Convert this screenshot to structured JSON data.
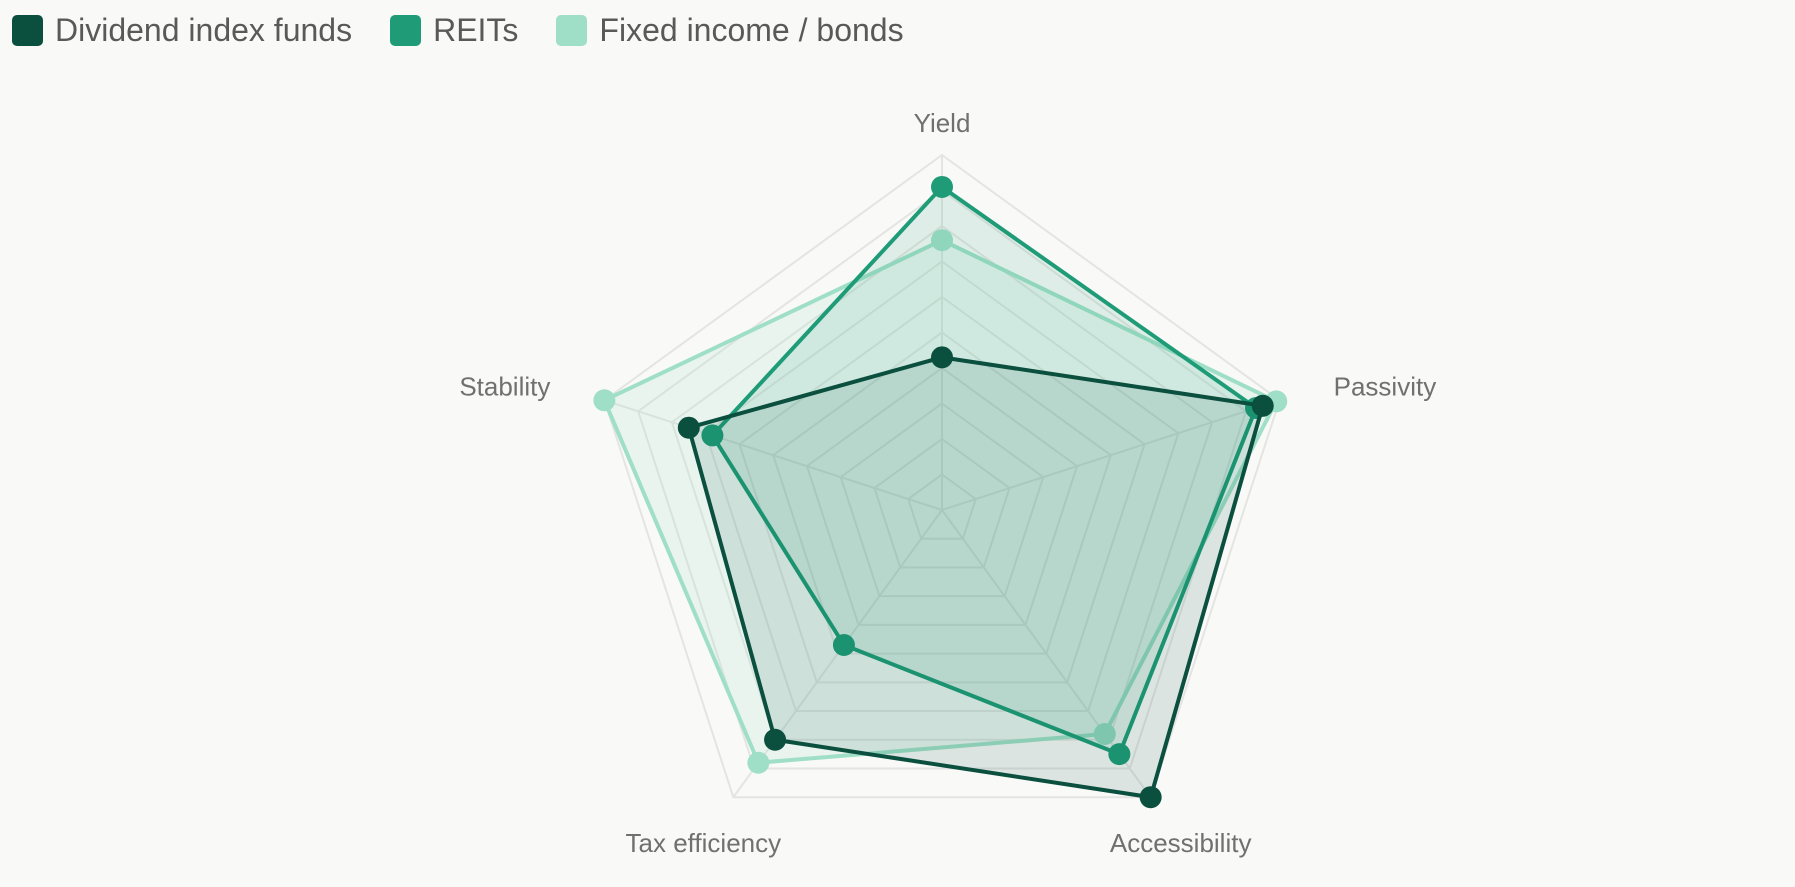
{
  "chart_data": {
    "type": "radar",
    "axes": [
      "Yield",
      "Passivity",
      "Accessibility",
      "Tax efficiency",
      "Stability"
    ],
    "r_range": [
      0,
      10
    ],
    "grid_levels": 10,
    "grid": true,
    "legend_position": "top-left",
    "series": [
      {
        "name": "Dividend index funds",
        "color": "#0b4f3f",
        "values": [
          4.3,
          9.5,
          10,
          8.0,
          7.5
        ]
      },
      {
        "name": "REITs",
        "color": "#1f9c77",
        "values": [
          9.1,
          9.3,
          8.5,
          4.7,
          6.8
        ]
      },
      {
        "name": "Fixed income / bonds",
        "color": "#9fdfc7",
        "values": [
          7.6,
          9.9,
          7.8,
          8.8,
          10
        ]
      }
    ]
  }
}
